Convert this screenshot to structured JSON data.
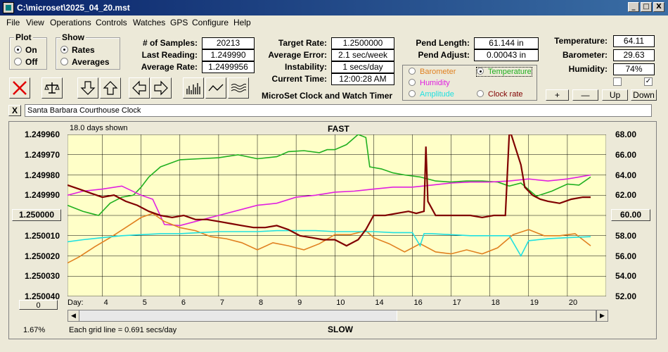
{
  "window": {
    "title": "C:\\microset\\2025_04_20.mst",
    "min": "_",
    "max": "□",
    "close": "X"
  },
  "menu": [
    "File",
    "View",
    "Operations",
    "Controls",
    "Watches",
    "GPS",
    "Configure",
    "Help"
  ],
  "plot_group": {
    "title": "Plot",
    "on": "On",
    "off": "Off",
    "selected": "On"
  },
  "show_group": {
    "title": "Show",
    "rates": "Rates",
    "averages": "Averages",
    "selected": "Rates"
  },
  "stats": {
    "samples_label": "# of Samples:",
    "samples": "20213",
    "last_label": "Last Reading:",
    "last": "1.249990",
    "avg_rate_label": "Average Rate:",
    "avg_rate": "1.2499956",
    "target_label": "Target Rate:",
    "target": "1.2500000",
    "avg_err_label": "Average Error:",
    "avg_err": "2.1 sec/week",
    "instab_label": "Instability:",
    "instab": "1 secs/day",
    "time_label": "Current Time:",
    "time": "12:00:28 AM",
    "pend_len_label": "Pend Length:",
    "pend_len": "61.144 in",
    "pend_adj_label": "Pend Adjust:",
    "pend_adj": "0.00043 in",
    "temp_label": "Temperature:",
    "temp": "64.11",
    "baro_label": "Barometer:",
    "baro": "29.63",
    "hum_label": "Humidity:",
    "hum": "74%"
  },
  "app_name": "MicroSet Clock and Watch Timer",
  "legend": {
    "barometer": "Barometer",
    "temperature": "Temperature",
    "humidity": "Humidity",
    "amplitude": "Amplitude",
    "clock_rate": "Clock rate",
    "selected": "Temperature",
    "colors": {
      "barometer": "#e08020",
      "temperature": "#20b020",
      "humidity": "#e020e0",
      "amplitude": "#20e0e0",
      "clock_rate": "#800000"
    }
  },
  "scale_buttons": {
    "plus": "+",
    "minus": "—",
    "up": "Up",
    "down": "Down"
  },
  "checkboxes": [
    {
      "checked": false
    },
    {
      "checked": true
    }
  ],
  "clock_name": "Santa Barbara Courthouse Clock",
  "clock_close": "X",
  "chart": {
    "days_shown": "18.0 days shown",
    "top_label": "FAST",
    "bottom_label": "SLOW",
    "grid_note": "Each grid line = 0.691 secs/day",
    "percent": "1.67%",
    "left_button": "1.250000",
    "right_button": "60.00",
    "scroll_box": "0",
    "day_prefix": "Day:"
  },
  "chart_data": {
    "type": "line",
    "background": "#ffffc8",
    "y_left_ticks": [
      "1.249960",
      "1.249970",
      "1.249980",
      "1.249990",
      "1.250000",
      "1.250010",
      "1.250020",
      "1.250030",
      "1.250040"
    ],
    "y_right_ticks": [
      "68.00",
      "66.00",
      "64.00",
      "62.00",
      "60.00",
      "58.00",
      "56.00",
      "54.00",
      "52.00"
    ],
    "ylim_left": [
      1.24996,
      1.25004
    ],
    "ylim_right": [
      52,
      68
    ],
    "x_ticks": [
      "4",
      "5",
      "6",
      "7",
      "8",
      "9",
      "10",
      "14",
      "16",
      "17",
      "18",
      "19",
      "20"
    ],
    "x_tick_positions": [
      4,
      5,
      6,
      7,
      8,
      9,
      10,
      11,
      12,
      13,
      14,
      15,
      16
    ],
    "xlim": [
      3.1,
      17.0
    ],
    "series": [
      {
        "name": "Temperature",
        "color": "#20b020",
        "axis": "right",
        "x": [
          3.1,
          3.5,
          3.9,
          4.2,
          4.5,
          4.8,
          5.0,
          5.2,
          5.5,
          6.0,
          6.5,
          7.0,
          7.5,
          8.0,
          8.5,
          8.8,
          9.2,
          9.6,
          9.8,
          10.0,
          10.3,
          10.6,
          10.8,
          10.9,
          11.2,
          11.5,
          11.8,
          12.2,
          12.6,
          13.0,
          13.4,
          13.8,
          14.2,
          14.5,
          14.8,
          15.2,
          15.6,
          16.0,
          16.3,
          16.6
        ],
        "y": [
          61.0,
          60.4,
          60.0,
          61.2,
          61.8,
          62.0,
          62.8,
          63.8,
          64.8,
          65.5,
          65.6,
          65.7,
          66.0,
          65.6,
          65.8,
          66.3,
          66.4,
          66.2,
          66.5,
          66.5,
          67.0,
          68.0,
          67.7,
          64.8,
          64.6,
          64.2,
          64.0,
          63.8,
          63.4,
          63.3,
          63.4,
          63.4,
          63.3,
          62.9,
          63.2,
          61.9,
          62.4,
          63.1,
          63.0,
          63.8
        ]
      },
      {
        "name": "Humidity",
        "color": "#e020e0",
        "axis": "right",
        "x": [
          3.1,
          3.5,
          4.0,
          4.5,
          5.0,
          5.3,
          5.6,
          6.0,
          6.5,
          7.0,
          7.5,
          8.0,
          8.5,
          9.0,
          9.5,
          10.0,
          10.5,
          11.0,
          11.5,
          12.0,
          12.5,
          13.0,
          13.5,
          14.0,
          14.5,
          15.0,
          15.5,
          16.0,
          16.3,
          16.6
        ],
        "y": [
          62.0,
          62.4,
          62.6,
          62.9,
          62.0,
          61.6,
          59.1,
          59.0,
          59.5,
          60.0,
          60.5,
          61.0,
          61.2,
          61.8,
          62.0,
          62.3,
          62.4,
          62.6,
          62.8,
          62.8,
          63.0,
          63.2,
          63.3,
          63.3,
          63.4,
          63.6,
          63.4,
          63.6,
          63.8,
          64.0
        ]
      },
      {
        "name": "Barometer",
        "color": "#e08020",
        "axis": "right",
        "x": [
          3.1,
          3.4,
          3.8,
          4.2,
          4.6,
          5.0,
          5.3,
          5.6,
          6.0,
          6.4,
          6.8,
          7.2,
          7.6,
          8.0,
          8.4,
          8.8,
          9.2,
          9.6,
          10.0,
          10.4,
          10.8,
          11.0,
          11.4,
          11.8,
          12.2,
          12.6,
          13.0,
          13.4,
          13.8,
          14.2,
          14.6,
          15.0,
          15.4,
          15.8,
          16.2,
          16.6
        ],
        "y": [
          55.3,
          55.9,
          56.9,
          57.8,
          58.8,
          59.8,
          60.2,
          59.4,
          58.8,
          58.5,
          57.9,
          57.7,
          57.3,
          56.6,
          57.3,
          57.0,
          56.6,
          57.2,
          58.1,
          58.1,
          58.5,
          57.8,
          57.2,
          56.4,
          57.2,
          56.4,
          56.2,
          56.6,
          56.2,
          56.8,
          58.1,
          58.6,
          58.0,
          58.0,
          58.2,
          57.0
        ]
      },
      {
        "name": "Amplitude",
        "color": "#20e0e0",
        "axis": "right",
        "x": [
          3.1,
          3.5,
          4.0,
          4.5,
          5.0,
          5.5,
          6.0,
          6.5,
          7.0,
          7.5,
          8.0,
          8.5,
          9.0,
          9.5,
          10.0,
          10.5,
          11.0,
          11.5,
          12.0,
          12.2,
          12.3,
          12.5,
          13.0,
          13.5,
          14.0,
          14.5,
          14.8,
          15.0,
          15.5,
          16.0,
          16.6
        ],
        "y": [
          57.4,
          57.6,
          57.8,
          58.0,
          58.1,
          58.2,
          58.2,
          58.3,
          58.4,
          58.4,
          58.4,
          58.5,
          58.5,
          58.5,
          58.4,
          58.4,
          58.4,
          58.3,
          58.3,
          57.0,
          58.2,
          58.2,
          58.1,
          58.0,
          58.0,
          58.0,
          56.0,
          57.5,
          57.7,
          57.8,
          57.9
        ]
      },
      {
        "name": "Clock rate",
        "color": "#800000",
        "axis": "left",
        "x": [
          3.1,
          3.4,
          3.7,
          4.0,
          4.3,
          4.6,
          4.9,
          5.2,
          5.5,
          5.8,
          6.1,
          6.4,
          6.7,
          7.0,
          7.3,
          7.6,
          7.9,
          8.2,
          8.5,
          8.8,
          9.1,
          9.4,
          9.7,
          10.0,
          10.3,
          10.6,
          10.8,
          11.0,
          11.3,
          11.6,
          11.9,
          12.1,
          12.3,
          12.35,
          12.4,
          12.6,
          12.9,
          13.2,
          13.5,
          13.8,
          14.1,
          14.4,
          14.5,
          14.55,
          14.8,
          14.9,
          15.1,
          15.3,
          15.5,
          15.8,
          16.1,
          16.4,
          16.6
        ],
        "y": [
          1.249985,
          1.249987,
          1.249989,
          1.249991,
          1.24999,
          1.249993,
          1.249995,
          1.249998,
          1.25,
          1.250001,
          1.25,
          1.250002,
          1.250002,
          1.250003,
          1.250004,
          1.250005,
          1.250006,
          1.250006,
          1.250005,
          1.250007,
          1.25001,
          1.250011,
          1.250012,
          1.250012,
          1.250015,
          1.250012,
          1.250007,
          1.25,
          1.25,
          1.249999,
          1.249998,
          1.249999,
          1.249998,
          1.249966,
          1.249993,
          1.25,
          1.25,
          1.25,
          1.25,
          1.250001,
          1.25,
          1.25,
          1.24996,
          1.24996,
          1.249975,
          1.249986,
          1.24999,
          1.249992,
          1.249993,
          1.249994,
          1.249992,
          1.249991,
          1.249991
        ]
      }
    ]
  }
}
